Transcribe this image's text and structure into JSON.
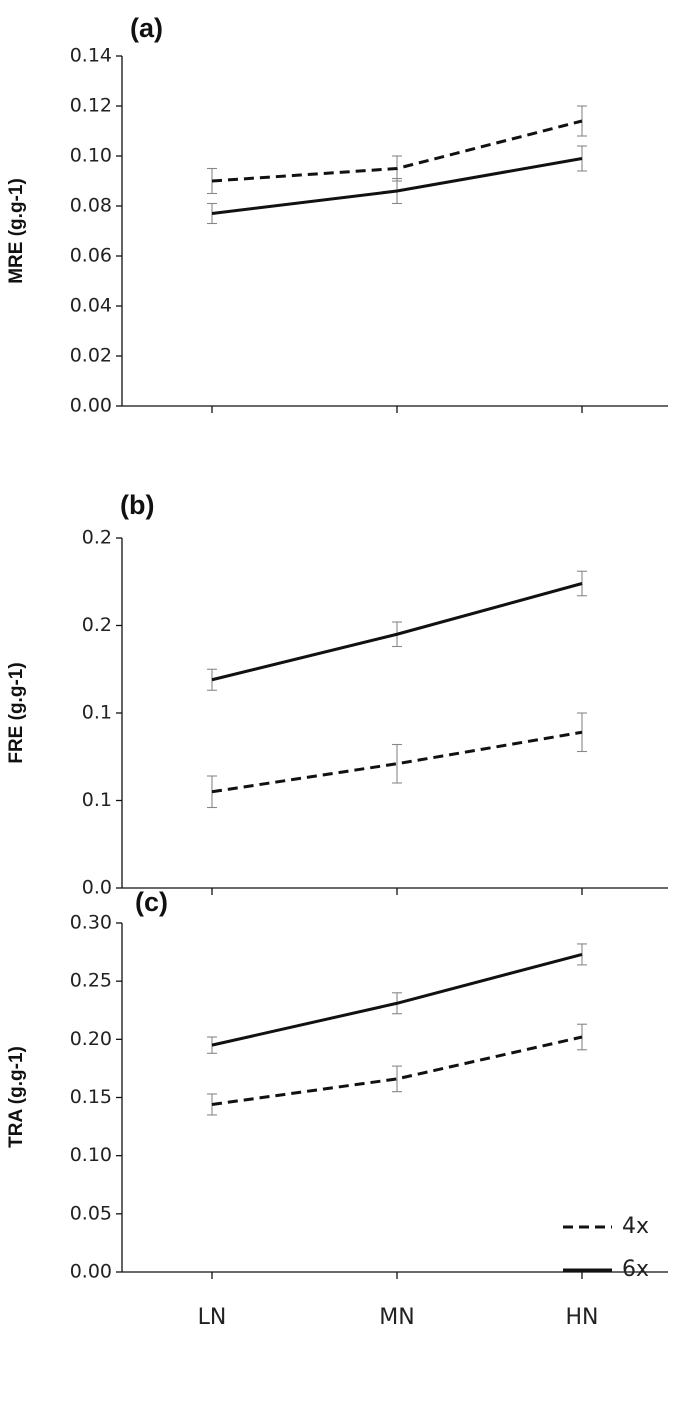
{
  "chart_data": [
    {
      "type": "line",
      "panel_label": "(a)",
      "ylabel": "MRE (g.g-1)",
      "categories": [
        "LN",
        "MN",
        "HN"
      ],
      "ylim": [
        0,
        0.14
      ],
      "yticks": [
        "0.00",
        "0.02",
        "0.04",
        "0.06",
        "0.08",
        "0.10",
        "0.12",
        "0.14"
      ],
      "series": [
        {
          "name": "4x",
          "style": "dashed",
          "values": [
            0.09,
            0.095,
            0.114
          ],
          "errors": [
            0.005,
            0.005,
            0.006
          ]
        },
        {
          "name": "6x",
          "style": "solid",
          "values": [
            0.077,
            0.086,
            0.099
          ],
          "errors": [
            0.004,
            0.005,
            0.005
          ]
        }
      ]
    },
    {
      "type": "line",
      "panel_label": "(b)",
      "ylabel": "FRE (g.g-1)",
      "categories": [
        "LN",
        "MN",
        "HN"
      ],
      "ylim": [
        0,
        0.2
      ],
      "yticks": [
        "0.0",
        "0.1",
        "0.1",
        "0.2",
        "0.2"
      ],
      "series": [
        {
          "name": "4x",
          "style": "dashed",
          "values": [
            0.055,
            0.071,
            0.089
          ],
          "errors": [
            0.009,
            0.011,
            0.011
          ]
        },
        {
          "name": "6x",
          "style": "solid",
          "values": [
            0.119,
            0.145,
            0.174
          ],
          "errors": [
            0.006,
            0.007,
            0.007
          ]
        }
      ]
    },
    {
      "type": "line",
      "panel_label": "(c)",
      "ylabel": "TRA (g.g-1)",
      "categories": [
        "LN",
        "MN",
        "HN"
      ],
      "xtick_labels": [
        "LN",
        "MN",
        "HN"
      ],
      "ylim": [
        0,
        0.3
      ],
      "yticks": [
        "0.00",
        "0.05",
        "0.10",
        "0.15",
        "0.20",
        "0.25",
        "0.30"
      ],
      "legend": {
        "position": "bottom-right",
        "entries": [
          "4x",
          "6x"
        ]
      },
      "series": [
        {
          "name": "4x",
          "style": "dashed",
          "values": [
            0.144,
            0.166,
            0.202
          ],
          "errors": [
            0.009,
            0.011,
            0.011
          ]
        },
        {
          "name": "6x",
          "style": "solid",
          "values": [
            0.195,
            0.231,
            0.273
          ],
          "errors": [
            0.007,
            0.009,
            0.009
          ]
        }
      ]
    }
  ]
}
